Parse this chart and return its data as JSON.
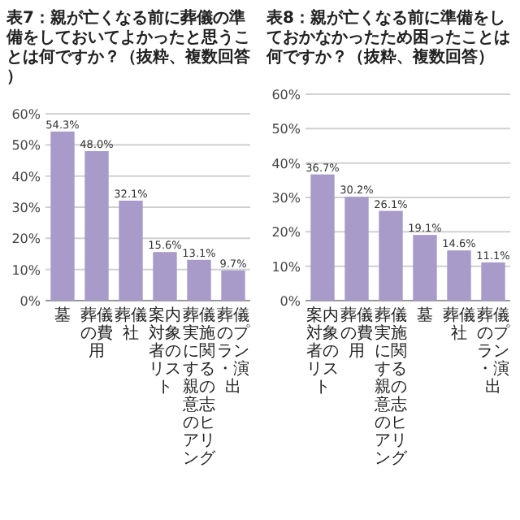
{
  "chart_data": [
    {
      "type": "bar",
      "title": "表7：親が亡くなる前に葬儀の準備をしておいてよかったと思うことは何ですか？（抜粋、複数回答）",
      "categories": [
        "墓",
        "葬儀の費用",
        "葬儀社",
        "案内対象者のリスト",
        "葬儀実施に関する親の意志のヒアリング",
        "葬儀のプラン・演出"
      ],
      "values": [
        54.3,
        48.0,
        32.1,
        15.6,
        13.1,
        9.7
      ],
      "value_labels": [
        "54.3%",
        "48.0%",
        "32.1%",
        "15.6%",
        "13.1%",
        "9.7%"
      ],
      "color": "#a99bc9",
      "ylim": [
        0,
        60
      ],
      "yticks": [
        {
          "value": 0,
          "label": "0%"
        },
        {
          "value": 10,
          "label": "10%"
        },
        {
          "value": 20,
          "label": "20%"
        },
        {
          "value": 30,
          "label": "30%"
        },
        {
          "value": 40,
          "label": "40%"
        },
        {
          "value": 50,
          "label": "50%"
        },
        {
          "value": 60,
          "label": "60%"
        }
      ],
      "grid": "y"
    },
    {
      "type": "bar",
      "title": "表8：親が亡くなる前に準備をしておかなかったため困ったことは何ですか？（抜粋、複数回答）",
      "categories": [
        "案内対象者のリスト",
        "葬儀の費用",
        "葬儀実施に関する親の意志のヒアリング",
        "墓",
        "葬儀社",
        "葬儀のプラン・演出"
      ],
      "values": [
        36.7,
        30.2,
        26.1,
        19.1,
        14.6,
        11.1
      ],
      "value_labels": [
        "36.7%",
        "30.2%",
        "26.1%",
        "19.1%",
        "14.6%",
        "11.1%"
      ],
      "color": "#a99bc9",
      "ylim": [
        0,
        60
      ],
      "yticks": [
        {
          "value": 0,
          "label": "0%"
        },
        {
          "value": 10,
          "label": "10%"
        },
        {
          "value": 20,
          "label": "20%"
        },
        {
          "value": 30,
          "label": "30%"
        },
        {
          "value": 40,
          "label": "40%"
        },
        {
          "value": 50,
          "label": "50%"
        },
        {
          "value": 60,
          "label": "60%"
        }
      ],
      "grid": "y"
    }
  ]
}
